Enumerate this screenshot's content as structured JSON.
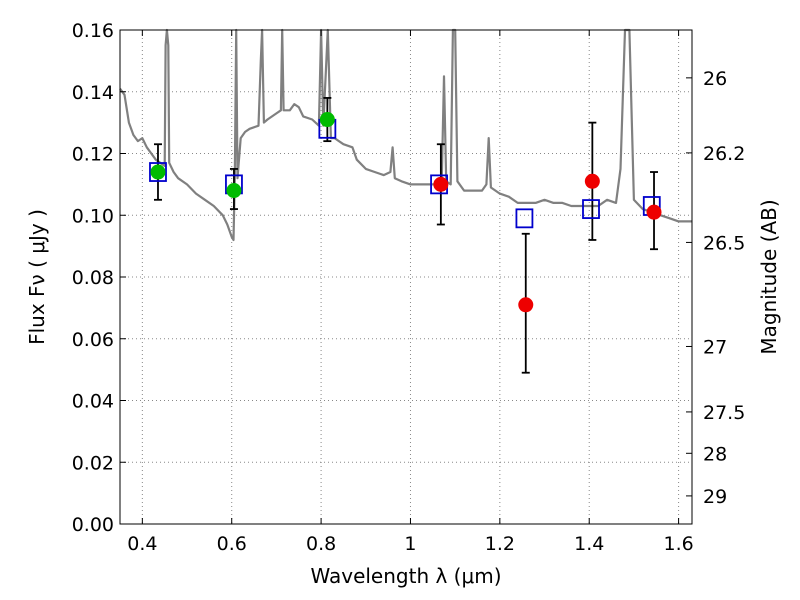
{
  "chart_data": {
    "type": "scatter",
    "xlabel": "Wavelength  λ (μm)",
    "ylabel": "Flux  Fν  ( μJy )",
    "y2label": "Magnitude (AB)",
    "xlim": [
      0.35,
      1.63
    ],
    "ylim": [
      0.0,
      0.16
    ],
    "grid": true,
    "x_ticks": [
      0.4,
      0.6,
      0.8,
      1.0,
      1.2,
      1.4,
      1.6
    ],
    "x_tick_labels": [
      "0.4",
      "0.6",
      "0.8",
      "1",
      "1.2",
      "1.4",
      "1.6"
    ],
    "y_ticks": [
      0.0,
      0.02,
      0.04,
      0.06,
      0.08,
      0.1,
      0.12,
      0.14,
      0.16
    ],
    "y_tick_labels": [
      "0.00",
      "0.02",
      "0.04",
      "0.06",
      "0.08",
      "0.10",
      "0.12",
      "0.14",
      "0.16"
    ],
    "y2_ticks": [
      {
        "label": "26",
        "flux": 0.1445
      },
      {
        "label": "26.2",
        "flux": 0.1202
      },
      {
        "label": "26.5",
        "flux": 0.0912
      },
      {
        "label": "27",
        "flux": 0.0575
      },
      {
        "label": "27.5",
        "flux": 0.0363
      },
      {
        "label": "28",
        "flux": 0.0229
      },
      {
        "label": "29",
        "flux": 0.0091
      }
    ],
    "colors": {
      "model": "#808080",
      "green": "#00bb00",
      "red": "#ee0000",
      "box": "#0000cc",
      "errorbar": "#000000",
      "grid": "#888888"
    },
    "model_spectrum": [
      [
        0.35,
        0.141
      ],
      [
        0.36,
        0.139
      ],
      [
        0.37,
        0.13
      ],
      [
        0.38,
        0.126
      ],
      [
        0.39,
        0.124
      ],
      [
        0.4,
        0.125
      ],
      [
        0.41,
        0.122
      ],
      [
        0.42,
        0.12
      ],
      [
        0.43,
        0.118
      ],
      [
        0.44,
        0.117
      ],
      [
        0.45,
        0.116
      ],
      [
        0.452,
        0.155
      ],
      [
        0.455,
        0.16
      ],
      [
        0.458,
        0.155
      ],
      [
        0.46,
        0.117
      ],
      [
        0.47,
        0.114
      ],
      [
        0.48,
        0.112
      ],
      [
        0.5,
        0.11
      ],
      [
        0.52,
        0.107
      ],
      [
        0.54,
        0.105
      ],
      [
        0.56,
        0.103
      ],
      [
        0.58,
        0.1
      ],
      [
        0.59,
        0.097
      ],
      [
        0.6,
        0.093
      ],
      [
        0.604,
        0.092
      ],
      [
        0.607,
        0.112
      ],
      [
        0.61,
        0.16
      ],
      [
        0.613,
        0.112
      ],
      [
        0.62,
        0.125
      ],
      [
        0.63,
        0.127
      ],
      [
        0.64,
        0.128
      ],
      [
        0.66,
        0.129
      ],
      [
        0.665,
        0.15
      ],
      [
        0.668,
        0.16
      ],
      [
        0.672,
        0.13
      ],
      [
        0.68,
        0.131
      ],
      [
        0.7,
        0.133
      ],
      [
        0.71,
        0.134
      ],
      [
        0.713,
        0.16
      ],
      [
        0.716,
        0.134
      ],
      [
        0.73,
        0.134
      ],
      [
        0.74,
        0.136
      ],
      [
        0.75,
        0.135
      ],
      [
        0.76,
        0.132
      ],
      [
        0.78,
        0.131
      ],
      [
        0.795,
        0.129
      ],
      [
        0.8,
        0.16
      ],
      [
        0.805,
        0.129
      ],
      [
        0.815,
        0.16
      ],
      [
        0.822,
        0.125
      ],
      [
        0.83,
        0.125
      ],
      [
        0.85,
        0.123
      ],
      [
        0.87,
        0.122
      ],
      [
        0.88,
        0.118
      ],
      [
        0.9,
        0.115
      ],
      [
        0.92,
        0.114
      ],
      [
        0.94,
        0.113
      ],
      [
        0.955,
        0.114
      ],
      [
        0.96,
        0.122
      ],
      [
        0.965,
        0.112
      ],
      [
        0.98,
        0.111
      ],
      [
        1.0,
        0.11
      ],
      [
        1.02,
        0.11
      ],
      [
        1.04,
        0.11
      ],
      [
        1.06,
        0.11
      ],
      [
        1.07,
        0.112
      ],
      [
        1.075,
        0.145
      ],
      [
        1.08,
        0.111
      ],
      [
        1.09,
        0.11
      ],
      [
        1.095,
        0.16
      ],
      [
        1.1,
        0.16
      ],
      [
        1.105,
        0.111
      ],
      [
        1.12,
        0.108
      ],
      [
        1.14,
        0.108
      ],
      [
        1.16,
        0.108
      ],
      [
        1.17,
        0.11
      ],
      [
        1.175,
        0.125
      ],
      [
        1.18,
        0.109
      ],
      [
        1.2,
        0.107
      ],
      [
        1.22,
        0.106
      ],
      [
        1.24,
        0.104
      ],
      [
        1.26,
        0.104
      ],
      [
        1.28,
        0.104
      ],
      [
        1.3,
        0.105
      ],
      [
        1.32,
        0.104
      ],
      [
        1.34,
        0.104
      ],
      [
        1.36,
        0.103
      ],
      [
        1.38,
        0.103
      ],
      [
        1.4,
        0.103
      ],
      [
        1.42,
        0.103
      ],
      [
        1.44,
        0.105
      ],
      [
        1.46,
        0.104
      ],
      [
        1.47,
        0.115
      ],
      [
        1.48,
        0.16
      ],
      [
        1.49,
        0.16
      ],
      [
        1.5,
        0.105
      ],
      [
        1.52,
        0.102
      ],
      [
        1.54,
        0.101
      ],
      [
        1.56,
        0.1
      ],
      [
        1.58,
        0.099
      ],
      [
        1.6,
        0.098
      ],
      [
        1.63,
        0.098
      ]
    ],
    "model_boxes": [
      [
        0.435,
        0.114
      ],
      [
        0.605,
        0.11
      ],
      [
        0.814,
        0.128
      ],
      [
        1.064,
        0.11
      ],
      [
        1.255,
        0.099
      ],
      [
        1.404,
        0.102
      ],
      [
        1.54,
        0.103
      ]
    ],
    "green_points": [
      {
        "x": 0.435,
        "y": 0.114,
        "ylow": 0.105,
        "yhigh": 0.123
      },
      {
        "x": 0.605,
        "y": 0.108,
        "ylow": 0.102,
        "yhigh": 0.115
      },
      {
        "x": 0.814,
        "y": 0.131,
        "ylow": 0.124,
        "yhigh": 0.138
      }
    ],
    "red_points": [
      {
        "x": 1.068,
        "y": 0.11,
        "ylow": 0.097,
        "yhigh": 0.123
      },
      {
        "x": 1.258,
        "y": 0.071,
        "ylow": 0.049,
        "yhigh": 0.094
      },
      {
        "x": 1.407,
        "y": 0.111,
        "ylow": 0.092,
        "yhigh": 0.13
      },
      {
        "x": 1.545,
        "y": 0.101,
        "ylow": 0.089,
        "yhigh": 0.114
      }
    ]
  }
}
